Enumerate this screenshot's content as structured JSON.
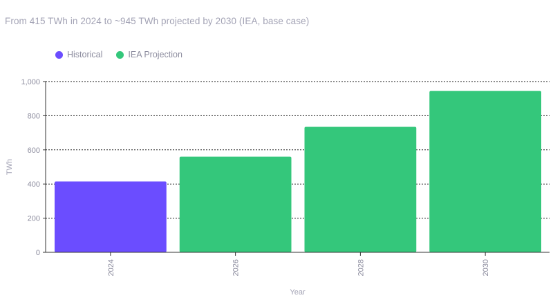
{
  "subtitle": "From 415 TWh in 2024 to ~945 TWh projected by 2030 (IEA, base case)",
  "legend": [
    {
      "label": "Historical",
      "color": "#6b4dff"
    },
    {
      "label": "IEA Projection",
      "color": "#34c77b"
    }
  ],
  "chart_data": {
    "type": "bar",
    "categories": [
      "2024",
      "2026",
      "2028",
      "2030"
    ],
    "values": [
      415,
      560,
      735,
      945
    ],
    "bar_series": [
      "Historical",
      "IEA Projection",
      "IEA Projection",
      "IEA Projection"
    ],
    "series": [
      {
        "name": "Historical",
        "values": [
          415,
          null,
          null,
          null
        ],
        "color": "#6b4dff"
      },
      {
        "name": "IEA Projection",
        "values": [
          null,
          560,
          735,
          945
        ],
        "color": "#34c77b"
      }
    ],
    "xlabel": "Year",
    "ylabel": "TWh",
    "ylim": [
      0,
      1000
    ],
    "yticks": [
      0,
      200,
      400,
      600,
      800,
      1000
    ],
    "ytick_labels": [
      "0",
      "200",
      "400",
      "600",
      "800",
      "1,000"
    ],
    "grid": true,
    "legend_position": "top-left"
  }
}
